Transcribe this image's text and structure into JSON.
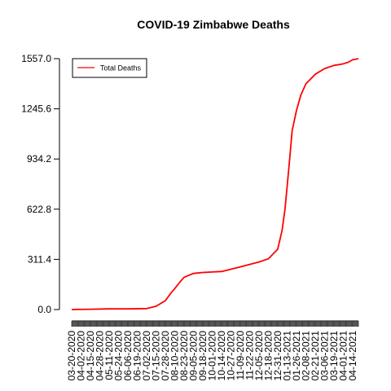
{
  "chart_data": {
    "type": "line",
    "title": "COVID-19 Zimbabwe Deaths",
    "xlabel": "",
    "ylabel": "",
    "y_ticks": [
      "0.0",
      "311.4",
      "622.8",
      "934.2",
      "1245.6",
      "1557.0"
    ],
    "ylim": [
      0,
      1557
    ],
    "x_tick_labels": [
      "03-20-2020",
      "04-02-2020",
      "04-15-2020",
      "04-28-2020",
      "05-11-2020",
      "05-24-2020",
      "06-06-2020",
      "06-19-2020",
      "07-02-2020",
      "07-15-2020",
      "07-28-2020",
      "08-10-2020",
      "08-23-2020",
      "09-05-2020",
      "09-18-2020",
      "10-01-2020",
      "10-14-2020",
      "10-27-2020",
      "11-09-2020",
      "11-22-2020",
      "12-05-2020",
      "12-18-2020",
      "12-31-2020",
      "01-13-2021",
      "01-26-2021",
      "02-08-2021",
      "02-21-2021",
      "03-06-2021",
      "03-19-2021",
      "04-01-2021",
      "04-14-2021"
    ],
    "x_range": [
      "03-20-2020",
      "04-22-2021"
    ],
    "legend_position": "top-left",
    "series": [
      {
        "name": "Total Deaths",
        "color": "#ff0000",
        "points": [
          [
            "03-20-2020",
            0
          ],
          [
            "04-15-2020",
            2
          ],
          [
            "05-11-2020",
            4
          ],
          [
            "06-06-2020",
            4
          ],
          [
            "07-02-2020",
            6
          ],
          [
            "07-15-2020",
            20
          ],
          [
            "07-28-2020",
            55
          ],
          [
            "08-05-2020",
            104
          ],
          [
            "08-10-2020",
            130
          ],
          [
            "08-18-2020",
            175
          ],
          [
            "08-23-2020",
            200
          ],
          [
            "08-31-2020",
            215
          ],
          [
            "09-05-2020",
            224
          ],
          [
            "09-18-2020",
            230
          ],
          [
            "10-01-2020",
            233
          ],
          [
            "10-14-2020",
            236
          ],
          [
            "10-27-2020",
            250
          ],
          [
            "11-09-2020",
            265
          ],
          [
            "11-22-2020",
            280
          ],
          [
            "12-05-2020",
            295
          ],
          [
            "12-18-2020",
            315
          ],
          [
            "12-31-2020",
            375
          ],
          [
            "01-06-2021",
            490
          ],
          [
            "01-10-2021",
            620
          ],
          [
            "01-13-2021",
            760
          ],
          [
            "01-17-2021",
            955
          ],
          [
            "01-20-2021",
            1110
          ],
          [
            "01-26-2021",
            1235
          ],
          [
            "02-01-2021",
            1330
          ],
          [
            "02-08-2021",
            1400
          ],
          [
            "02-21-2021",
            1460
          ],
          [
            "03-06-2021",
            1495
          ],
          [
            "03-19-2021",
            1515
          ],
          [
            "04-01-2021",
            1525
          ],
          [
            "04-08-2021",
            1535
          ],
          [
            "04-14-2021",
            1550
          ],
          [
            "04-22-2021",
            1557
          ]
        ]
      }
    ]
  }
}
